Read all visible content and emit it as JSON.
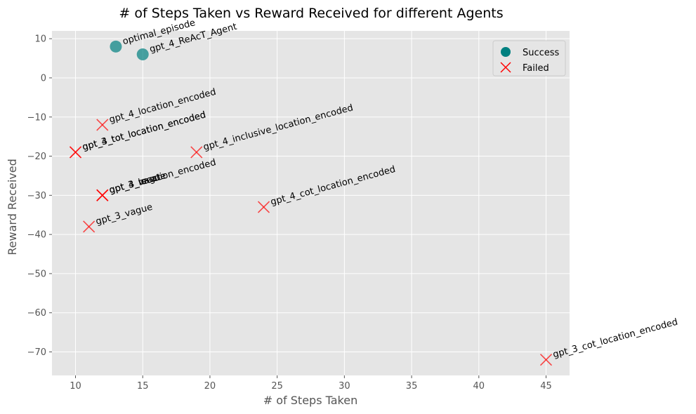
{
  "chart_data": {
    "type": "scatter",
    "title": "# of Steps Taken vs Reward Received for different Agents",
    "xlabel": "# of Steps Taken",
    "ylabel": "Reward Received",
    "xlim": [
      8.25,
      46.75
    ],
    "ylim": [
      -76,
      12
    ],
    "xticks": [
      "10",
      "15",
      "20",
      "25",
      "30",
      "35",
      "40",
      "45"
    ],
    "yticks": [
      "10",
      "0",
      "−10",
      "−20",
      "−30",
      "−40",
      "−50",
      "−60",
      "−70"
    ],
    "grid": true,
    "legend_position": "top-right",
    "colors": {
      "success": "#008080",
      "failed": "#ff0000"
    },
    "legend": [
      {
        "name": "Success",
        "marker": "circle"
      },
      {
        "name": "Failed",
        "marker": "x"
      }
    ],
    "points": [
      {
        "label": "optimal_episode",
        "x": 13,
        "y": 8,
        "status": "success"
      },
      {
        "label": "gpt_4_ReAcT_Agent",
        "x": 15,
        "y": 6,
        "status": "success"
      },
      {
        "label": "gpt_4_location_encoded",
        "x": 12,
        "y": -12,
        "status": "failed"
      },
      {
        "label": "gpt_3_tot_location_encoded",
        "x": 10,
        "y": -19,
        "status": "failed"
      },
      {
        "label": "gpt_4_tot_location_encoded",
        "x": 10,
        "y": -19,
        "status": "failed"
      },
      {
        "label": "gpt_4_inclusive_location_encoded",
        "x": 19,
        "y": -19,
        "status": "failed"
      },
      {
        "label": "gpt_3_location_encoded",
        "x": 12,
        "y": -30,
        "status": "failed"
      },
      {
        "label": "gpt_4_vague",
        "x": 12,
        "y": -30,
        "status": "failed"
      },
      {
        "label": "gpt_3_react",
        "x": 12,
        "y": -30,
        "status": "failed"
      },
      {
        "label": "gpt_4_cot_location_encoded",
        "x": 24,
        "y": -33,
        "status": "failed"
      },
      {
        "label": "gpt_3_vague",
        "x": 11,
        "y": -38,
        "status": "failed"
      },
      {
        "label": "gpt_3_cot_location_encoded",
        "x": 45,
        "y": -72,
        "status": "failed"
      }
    ]
  }
}
